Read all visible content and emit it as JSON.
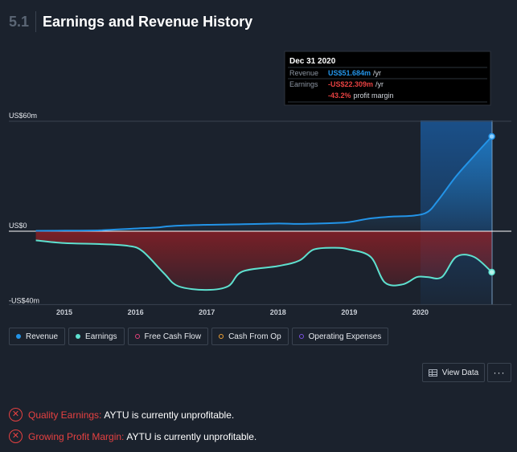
{
  "header": {
    "section_number": "5.1",
    "title": "Earnings and Revenue History"
  },
  "chart_data": {
    "type": "area",
    "ylim": [
      -40,
      60
    ],
    "y_tick_labels": [
      "US$60m",
      "US$0",
      "-US$40m"
    ],
    "x_tick_labels": [
      "2015",
      "2016",
      "2017",
      "2018",
      "2019",
      "2020"
    ],
    "series": [
      {
        "name": "Revenue",
        "color": "#2394e8",
        "x": [
          2014.6,
          2015.0,
          2015.5,
          2016.0,
          2016.3,
          2016.5,
          2017.0,
          2017.5,
          2018.0,
          2018.3,
          2018.8,
          2019.0,
          2019.3,
          2019.6,
          2019.9,
          2020.1,
          2020.25,
          2020.5,
          2020.75,
          2021.0
        ],
        "values": [
          0.2,
          0.3,
          0.5,
          1.5,
          2.0,
          2.8,
          3.5,
          3.8,
          4.2,
          4.0,
          4.5,
          5.0,
          7.0,
          8.0,
          8.5,
          10.5,
          17.0,
          30.0,
          41.0,
          51.684
        ]
      },
      {
        "name": "Earnings",
        "color": "#5ee0cf",
        "x": [
          2014.6,
          2015.0,
          2015.5,
          2015.9,
          2016.1,
          2016.4,
          2016.6,
          2017.0,
          2017.3,
          2017.5,
          2018.0,
          2018.3,
          2018.5,
          2018.8,
          2019.0,
          2019.3,
          2019.5,
          2019.75,
          2019.95,
          2020.1,
          2020.3,
          2020.5,
          2020.75,
          2021.0
        ],
        "values": [
          -5.0,
          -6.5,
          -7.0,
          -8.0,
          -11.0,
          -23.0,
          -30.0,
          -32.0,
          -30.0,
          -22.0,
          -19.0,
          -16.0,
          -10.0,
          -9.0,
          -10.0,
          -14.0,
          -28.0,
          -29.0,
          -25.0,
          -25.0,
          -25.0,
          -14.0,
          -14.0,
          -22.309
        ]
      },
      {
        "name": "Free Cash Flow",
        "color": "#e0407a",
        "x": [],
        "values": []
      },
      {
        "name": "Cash From Op",
        "color": "#f0a236",
        "x": [],
        "values": []
      },
      {
        "name": "Operating Expenses",
        "color": "#7a50e0",
        "x": [],
        "values": []
      }
    ],
    "tooltip": {
      "date": "Dec 31 2020",
      "rows": [
        {
          "label": "Revenue",
          "value": "US$51.684m",
          "unit": "/yr",
          "color": "#2394e8"
        },
        {
          "label": "Earnings",
          "value": "-US$22.309m",
          "unit": "/yr",
          "color": "#e64141"
        },
        {
          "label": "",
          "value": "-43.2%",
          "unit": "profit margin",
          "color": "#e64141"
        }
      ]
    }
  },
  "legend": [
    {
      "label": "Revenue",
      "color": "#2394e8",
      "hollow": false
    },
    {
      "label": "Earnings",
      "color": "#5ee0cf",
      "hollow": false
    },
    {
      "label": "Free Cash Flow",
      "color": "#e0407a",
      "hollow": true
    },
    {
      "label": "Cash From Op",
      "color": "#f0a236",
      "hollow": true
    },
    {
      "label": "Operating Expenses",
      "color": "#7a50e0",
      "hollow": true
    }
  ],
  "buttons": {
    "view_data": "View Data",
    "more": "···"
  },
  "checks": [
    {
      "label": "Quality Earnings:",
      "text": "AYTU is currently unprofitable.",
      "status": "fail"
    },
    {
      "label": "Growing Profit Margin:",
      "text": "AYTU is currently unprofitable.",
      "status": "fail"
    }
  ]
}
